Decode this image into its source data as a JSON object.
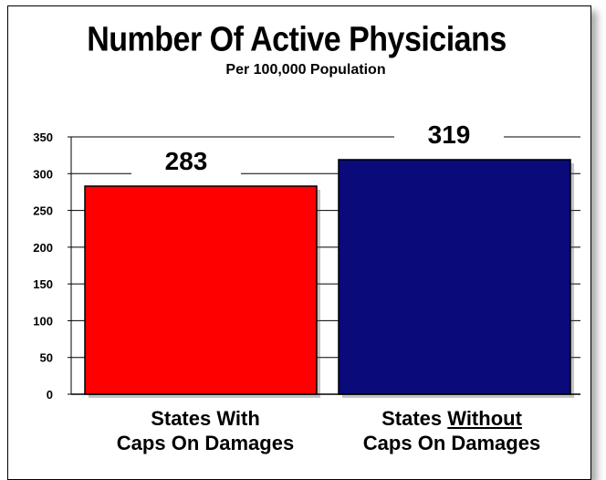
{
  "chart_data": {
    "type": "bar",
    "title": "Number Of Active Physicians",
    "subtitle": "Per 100,000 Population",
    "categories": [
      {
        "line1_prefix": "States ",
        "line1_emph": "With",
        "line2": "Caps On Damages",
        "emph_underlined": false
      },
      {
        "line1_prefix": "States ",
        "line1_emph": "Without",
        "line2": "Caps On Damages",
        "emph_underlined": true
      }
    ],
    "values": [
      283,
      319
    ],
    "data_labels": [
      "283",
      "319"
    ],
    "colors": [
      "#ff0000",
      "#0a0a7a"
    ],
    "ylim": [
      0,
      350
    ],
    "yticks": [
      0,
      50,
      100,
      150,
      200,
      250,
      300,
      350
    ],
    "grid": true
  }
}
